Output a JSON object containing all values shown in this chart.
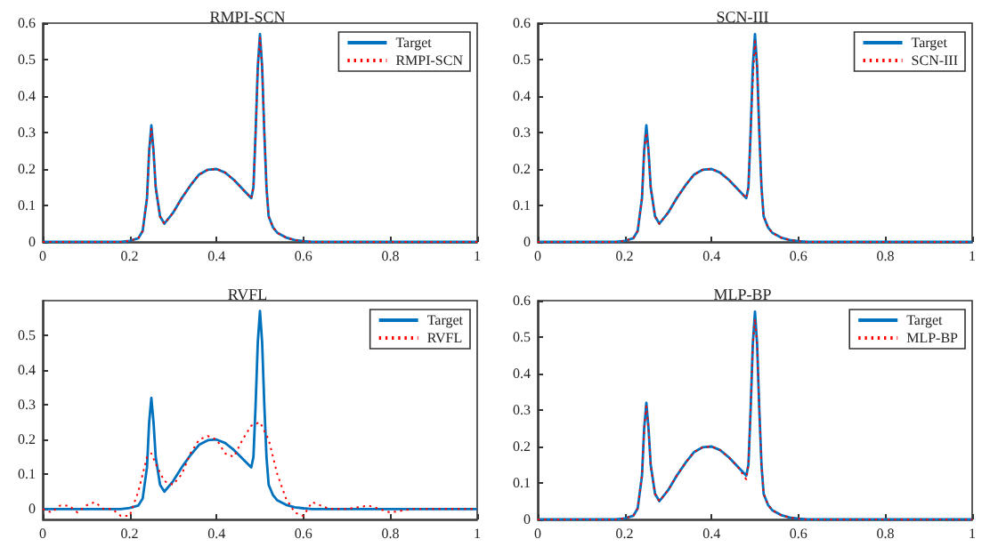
{
  "chart_data": [
    {
      "type": "line",
      "title": "RMPI-SCN",
      "xlim": [
        0,
        1
      ],
      "xticks": [
        0,
        0.2,
        0.4,
        0.6,
        0.8,
        1
      ],
      "ylim": [
        0,
        0.6
      ],
      "yticks": [
        0,
        0.1,
        0.2,
        0.3,
        0.4,
        0.5,
        0.6
      ],
      "grid": false,
      "legend": "top right",
      "series": [
        {
          "name": "Target",
          "color": "#0072bd",
          "line_style": "solid",
          "x": [
            0,
            0.1,
            0.18,
            0.2,
            0.22,
            0.23,
            0.24,
            0.245,
            0.25,
            0.255,
            0.26,
            0.27,
            0.28,
            0.3,
            0.32,
            0.34,
            0.36,
            0.38,
            0.4,
            0.42,
            0.44,
            0.46,
            0.48,
            0.485,
            0.49,
            0.495,
            0.5,
            0.505,
            0.51,
            0.515,
            0.52,
            0.53,
            0.54,
            0.56,
            0.58,
            0.6,
            0.62,
            0.7,
            0.8,
            0.9,
            1
          ],
          "values": [
            0,
            0,
            0,
            0.003,
            0.01,
            0.03,
            0.12,
            0.25,
            0.32,
            0.25,
            0.15,
            0.07,
            0.05,
            0.08,
            0.12,
            0.155,
            0.185,
            0.198,
            0.2,
            0.19,
            0.17,
            0.145,
            0.12,
            0.15,
            0.3,
            0.48,
            0.57,
            0.48,
            0.3,
            0.15,
            0.07,
            0.04,
            0.025,
            0.012,
            0.005,
            0.002,
            0,
            0,
            0,
            0,
            0
          ]
        },
        {
          "name": "RMPI-SCN",
          "color": "#ff0000",
          "line_style": "dotted",
          "x": [
            0,
            0.1,
            0.18,
            0.2,
            0.22,
            0.23,
            0.24,
            0.245,
            0.25,
            0.255,
            0.26,
            0.27,
            0.28,
            0.3,
            0.32,
            0.34,
            0.36,
            0.38,
            0.4,
            0.42,
            0.44,
            0.46,
            0.48,
            0.485,
            0.49,
            0.495,
            0.5,
            0.505,
            0.51,
            0.515,
            0.52,
            0.53,
            0.54,
            0.56,
            0.58,
            0.6,
            0.62,
            0.7,
            0.8,
            0.9,
            1
          ],
          "values": [
            0,
            0,
            0,
            0.003,
            0.01,
            0.03,
            0.12,
            0.25,
            0.31,
            0.25,
            0.15,
            0.07,
            0.05,
            0.08,
            0.12,
            0.155,
            0.185,
            0.198,
            0.2,
            0.19,
            0.17,
            0.145,
            0.12,
            0.15,
            0.3,
            0.48,
            0.56,
            0.48,
            0.3,
            0.15,
            0.07,
            0.04,
            0.025,
            0.012,
            0.005,
            0.002,
            0,
            0,
            0,
            0,
            0
          ]
        }
      ]
    },
    {
      "type": "line",
      "title": "SCN-III",
      "xlim": [
        0,
        1
      ],
      "xticks": [
        0,
        0.2,
        0.4,
        0.6,
        0.8,
        1
      ],
      "ylim": [
        0,
        0.6
      ],
      "yticks": [
        0,
        0.1,
        0.2,
        0.3,
        0.4,
        0.5,
        0.6
      ],
      "grid": false,
      "legend": "top right",
      "series": [
        {
          "name": "Target",
          "color": "#0072bd",
          "line_style": "solid",
          "x": [
            0,
            0.1,
            0.18,
            0.2,
            0.22,
            0.23,
            0.24,
            0.245,
            0.25,
            0.255,
            0.26,
            0.27,
            0.28,
            0.3,
            0.32,
            0.34,
            0.36,
            0.38,
            0.4,
            0.42,
            0.44,
            0.46,
            0.48,
            0.485,
            0.49,
            0.495,
            0.5,
            0.505,
            0.51,
            0.515,
            0.52,
            0.53,
            0.54,
            0.56,
            0.58,
            0.6,
            0.62,
            0.7,
            0.8,
            0.9,
            1
          ],
          "values": [
            0,
            0,
            0,
            0.003,
            0.01,
            0.03,
            0.12,
            0.25,
            0.32,
            0.25,
            0.15,
            0.07,
            0.05,
            0.08,
            0.12,
            0.155,
            0.185,
            0.198,
            0.2,
            0.19,
            0.17,
            0.145,
            0.12,
            0.15,
            0.3,
            0.48,
            0.57,
            0.48,
            0.3,
            0.15,
            0.07,
            0.04,
            0.025,
            0.012,
            0.005,
            0.002,
            0,
            0,
            0,
            0,
            0
          ]
        },
        {
          "name": "SCN-III",
          "color": "#ff0000",
          "line_style": "dotted",
          "x": [
            0,
            0.1,
            0.18,
            0.2,
            0.22,
            0.23,
            0.24,
            0.245,
            0.25,
            0.255,
            0.26,
            0.27,
            0.28,
            0.3,
            0.32,
            0.34,
            0.36,
            0.38,
            0.4,
            0.42,
            0.44,
            0.46,
            0.48,
            0.485,
            0.49,
            0.495,
            0.5,
            0.505,
            0.51,
            0.515,
            0.52,
            0.53,
            0.54,
            0.56,
            0.58,
            0.6,
            0.62,
            0.7,
            0.8,
            0.9,
            1
          ],
          "values": [
            0,
            0,
            0,
            0.003,
            0.01,
            0.03,
            0.12,
            0.25,
            0.3,
            0.25,
            0.15,
            0.07,
            0.05,
            0.08,
            0.12,
            0.155,
            0.185,
            0.198,
            0.2,
            0.19,
            0.17,
            0.145,
            0.12,
            0.15,
            0.3,
            0.44,
            0.55,
            0.48,
            0.3,
            0.15,
            0.07,
            0.04,
            0.025,
            0.012,
            0.005,
            0.002,
            0,
            0,
            0,
            0,
            0
          ]
        }
      ]
    },
    {
      "type": "line",
      "title": "RVFL",
      "xlim": [
        0,
        1
      ],
      "xticks": [
        0,
        0.2,
        0.4,
        0.6,
        0.8,
        1
      ],
      "ylim": [
        -0.03,
        0.6
      ],
      "yticks": [
        0,
        0.1,
        0.2,
        0.3,
        0.4,
        0.5
      ],
      "grid": false,
      "legend": "top right",
      "series": [
        {
          "name": "Target",
          "color": "#0072bd",
          "line_style": "solid",
          "x": [
            0,
            0.1,
            0.18,
            0.2,
            0.22,
            0.23,
            0.24,
            0.245,
            0.25,
            0.255,
            0.26,
            0.27,
            0.28,
            0.3,
            0.32,
            0.34,
            0.36,
            0.38,
            0.4,
            0.42,
            0.44,
            0.46,
            0.48,
            0.485,
            0.49,
            0.495,
            0.5,
            0.505,
            0.51,
            0.515,
            0.52,
            0.53,
            0.54,
            0.56,
            0.58,
            0.6,
            0.62,
            0.7,
            0.8,
            0.9,
            1
          ],
          "values": [
            0,
            0,
            0,
            0.003,
            0.01,
            0.03,
            0.12,
            0.25,
            0.32,
            0.25,
            0.15,
            0.07,
            0.05,
            0.08,
            0.12,
            0.155,
            0.185,
            0.198,
            0.2,
            0.19,
            0.17,
            0.145,
            0.12,
            0.15,
            0.3,
            0.48,
            0.57,
            0.48,
            0.3,
            0.15,
            0.07,
            0.04,
            0.025,
            0.012,
            0.005,
            0.002,
            0,
            0,
            0,
            0,
            0
          ]
        },
        {
          "name": "RVFL",
          "color": "#ff0000",
          "line_style": "dotted",
          "x": [
            0,
            0.02,
            0.04,
            0.06,
            0.08,
            0.1,
            0.12,
            0.14,
            0.16,
            0.18,
            0.2,
            0.22,
            0.24,
            0.25,
            0.26,
            0.28,
            0.3,
            0.32,
            0.34,
            0.36,
            0.38,
            0.4,
            0.42,
            0.44,
            0.46,
            0.48,
            0.5,
            0.52,
            0.54,
            0.56,
            0.58,
            0.6,
            0.62,
            0.64,
            0.66,
            0.7,
            0.75,
            0.8,
            0.85,
            0.9,
            0.95,
            1
          ],
          "values": [
            0,
            -0.01,
            0.01,
            0.01,
            -0.01,
            0.01,
            0.02,
            0,
            0,
            -0.02,
            -0.02,
            0.05,
            0.15,
            0.16,
            0.13,
            0.08,
            0.07,
            0.1,
            0.16,
            0.2,
            0.21,
            0.2,
            0.16,
            0.15,
            0.2,
            0.24,
            0.25,
            0.2,
            0.1,
            0.03,
            -0.01,
            -0.02,
            0.02,
            0.01,
            0,
            0,
            0.01,
            -0.01,
            0,
            0,
            0,
            0
          ]
        }
      ]
    },
    {
      "type": "line",
      "title": "MLP-BP",
      "xlim": [
        0,
        1
      ],
      "xticks": [
        0,
        0.2,
        0.4,
        0.6,
        0.8,
        1
      ],
      "ylim": [
        0,
        0.6
      ],
      "yticks": [
        0,
        0.1,
        0.2,
        0.3,
        0.4,
        0.5,
        0.6
      ],
      "grid": false,
      "legend": "top right",
      "series": [
        {
          "name": "Target",
          "color": "#0072bd",
          "line_style": "solid",
          "x": [
            0,
            0.1,
            0.18,
            0.2,
            0.22,
            0.23,
            0.24,
            0.245,
            0.25,
            0.255,
            0.26,
            0.27,
            0.28,
            0.3,
            0.32,
            0.34,
            0.36,
            0.38,
            0.4,
            0.42,
            0.44,
            0.46,
            0.48,
            0.485,
            0.49,
            0.495,
            0.5,
            0.505,
            0.51,
            0.515,
            0.52,
            0.53,
            0.54,
            0.56,
            0.58,
            0.6,
            0.62,
            0.7,
            0.8,
            0.9,
            1
          ],
          "values": [
            0,
            0,
            0,
            0.003,
            0.01,
            0.03,
            0.12,
            0.25,
            0.32,
            0.25,
            0.15,
            0.07,
            0.05,
            0.08,
            0.12,
            0.155,
            0.185,
            0.198,
            0.2,
            0.19,
            0.17,
            0.145,
            0.12,
            0.15,
            0.3,
            0.48,
            0.57,
            0.48,
            0.3,
            0.15,
            0.07,
            0.04,
            0.025,
            0.012,
            0.005,
            0.002,
            0,
            0,
            0,
            0,
            0
          ]
        },
        {
          "name": "MLP-BP",
          "color": "#ff0000",
          "line_style": "dotted",
          "x": [
            0,
            0.1,
            0.18,
            0.2,
            0.22,
            0.23,
            0.24,
            0.245,
            0.25,
            0.255,
            0.26,
            0.27,
            0.28,
            0.3,
            0.32,
            0.34,
            0.36,
            0.38,
            0.4,
            0.42,
            0.44,
            0.46,
            0.48,
            0.485,
            0.49,
            0.495,
            0.5,
            0.505,
            0.51,
            0.515,
            0.52,
            0.53,
            0.54,
            0.56,
            0.58,
            0.6,
            0.62,
            0.7,
            0.8,
            0.9,
            1
          ],
          "values": [
            0,
            0,
            0,
            0.003,
            0.01,
            0.03,
            0.12,
            0.25,
            0.31,
            0.25,
            0.15,
            0.07,
            0.05,
            0.08,
            0.12,
            0.155,
            0.185,
            0.198,
            0.2,
            0.19,
            0.17,
            0.145,
            0.11,
            0.15,
            0.3,
            0.48,
            0.55,
            0.48,
            0.3,
            0.15,
            0.07,
            0.04,
            0.025,
            0.012,
            0.005,
            0.002,
            0,
            0,
            0,
            0,
            0
          ]
        }
      ]
    }
  ]
}
